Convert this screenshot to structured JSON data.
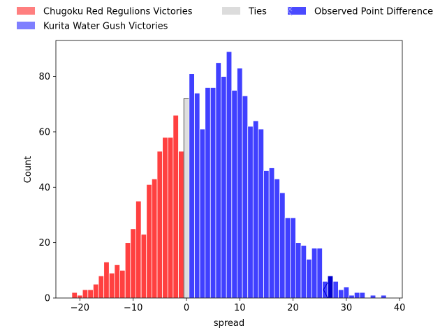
{
  "chart_data": {
    "type": "bar",
    "xlabel": "spread",
    "ylabel": "Count",
    "xlim": [
      -24.5,
      40.5
    ],
    "ylim": [
      0,
      93
    ],
    "x_ticks": [
      -20,
      -10,
      0,
      10,
      20,
      30,
      40
    ],
    "x_tick_labels": [
      "−20",
      "−10",
      "0",
      "10",
      "20",
      "30",
      "40"
    ],
    "y_ticks": [
      0,
      20,
      40,
      60,
      80
    ],
    "y_tick_labels": [
      "0",
      "20",
      "40",
      "60",
      "80"
    ],
    "grid": false,
    "legend_position": "top",
    "bin_width": 1,
    "series": [
      {
        "name": "Chugoku Red Regulions Victories",
        "color": "#ff0000",
        "legend_color": "#ff7f7f",
        "x": [
          -21,
          -20,
          -19,
          -18,
          -17,
          -16,
          -15,
          -14,
          -13,
          -12,
          -11,
          -10,
          -9,
          -8,
          -7,
          -6,
          -5,
          -4,
          -3,
          -2,
          -1
        ],
        "values": [
          2,
          1,
          3,
          3,
          5,
          8,
          13,
          9,
          12,
          10,
          20,
          25,
          35,
          23,
          41,
          43,
          53,
          58,
          58,
          66,
          53
        ]
      },
      {
        "name": "Ties",
        "color": "#d3d3d3",
        "legend_color": "#dcdcdc",
        "x": [
          0
        ],
        "values": [
          72
        ]
      },
      {
        "name": "Kurita Water Gush Victories",
        "color": "#0000ff",
        "legend_color": "#7f7fff",
        "x": [
          1,
          2,
          3,
          4,
          5,
          6,
          7,
          8,
          9,
          10,
          11,
          12,
          13,
          14,
          15,
          16,
          17,
          18,
          19,
          20,
          21,
          22,
          23,
          24,
          25,
          26,
          27,
          28,
          29,
          30,
          31,
          32,
          33,
          34,
          35,
          36,
          37
        ],
        "values": [
          81,
          74,
          61,
          76,
          76,
          85,
          80,
          89,
          75,
          83,
          73,
          62,
          64,
          61,
          46,
          47,
          43,
          38,
          29,
          29,
          20,
          19,
          14,
          18,
          18,
          6,
          5,
          6,
          3,
          4,
          1,
          2,
          2,
          0,
          1,
          0,
          1
        ]
      }
    ],
    "observed_point_difference": {
      "name": "Observed Point Difference",
      "x": 27,
      "value": 8,
      "color": "#0000cc",
      "legend_color": "#4a4aff"
    }
  }
}
